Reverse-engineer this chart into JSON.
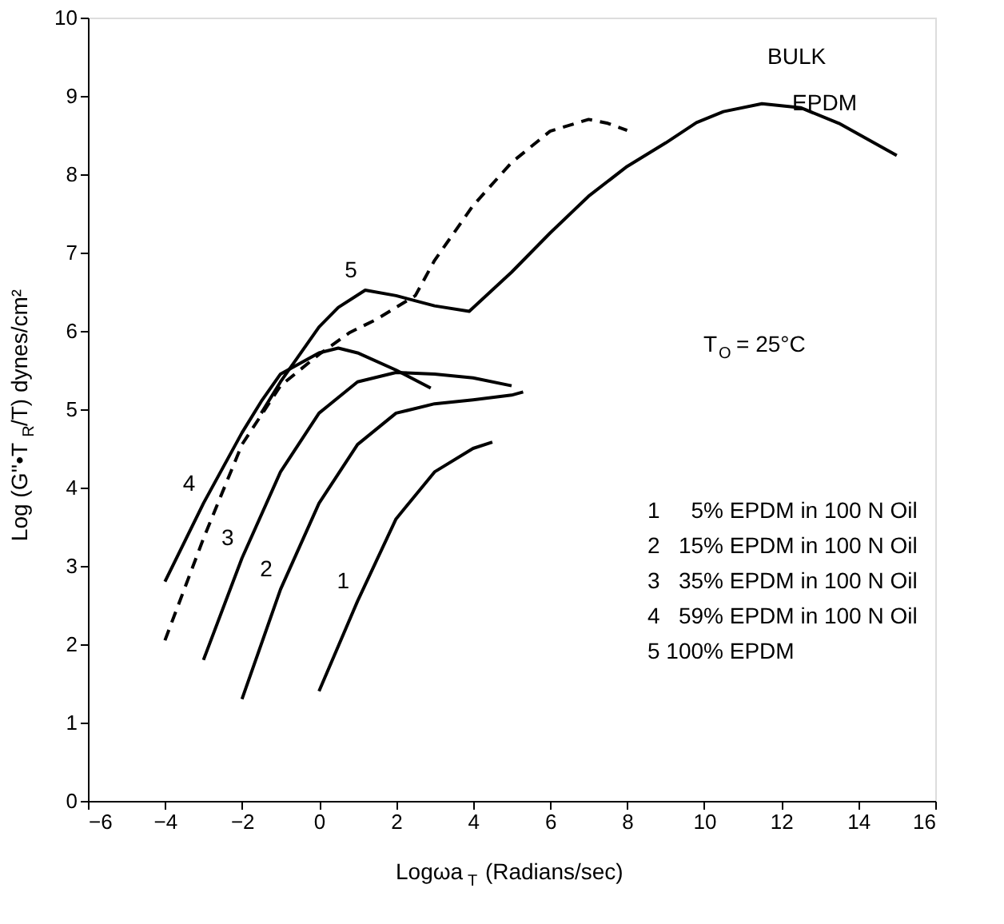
{
  "chart_data": {
    "type": "line",
    "xlabel": "Logωa$_{T}$ (Radians/sec)",
    "ylabel": "Log (G''•T$_{R}$/T) dynes/cm²",
    "xlim": [
      -6,
      16
    ],
    "ylim": [
      0,
      10
    ],
    "xticks": [
      -6,
      -4,
      -2,
      0,
      2,
      4,
      6,
      8,
      10,
      12,
      14,
      16
    ],
    "yticks": [
      0,
      1,
      2,
      3,
      4,
      5,
      6,
      7,
      8,
      9,
      10
    ],
    "grid": false,
    "line_style": "solid",
    "series": [
      {
        "color": "#000000",
        "x": [
          0,
          1,
          2,
          3,
          4,
          4.5
        ],
        "values": [
          1.4,
          2.55,
          3.6,
          4.2,
          4.5,
          4.58
        ]
      },
      {
        "color": "#000000",
        "x": [
          -2,
          -1,
          0,
          1,
          2,
          3,
          4,
          5,
          5.3
        ],
        "values": [
          1.3,
          2.7,
          3.8,
          4.55,
          4.95,
          5.07,
          5.12,
          5.18,
          5.22
        ]
      },
      {
        "color": "#000000",
        "x": [
          -3,
          -2,
          -1,
          0,
          1,
          2,
          3,
          4,
          5
        ],
        "values": [
          1.8,
          3.1,
          4.2,
          4.95,
          5.35,
          5.47,
          5.45,
          5.4,
          5.3
        ]
      },
      {
        "color": "#000000",
        "x": [
          -4,
          -3,
          -2,
          -1.5,
          -1,
          0,
          0.5,
          1,
          2,
          2.9
        ],
        "values": [
          2.8,
          3.8,
          4.7,
          5.1,
          5.45,
          5.72,
          5.78,
          5.72,
          5.5,
          5.27
        ]
      },
      {
        "color": "#000000",
        "x": [
          -1.5,
          -1,
          0,
          0.5,
          1.2,
          2,
          3,
          3.9,
          5,
          6,
          7,
          8,
          9,
          9.8,
          10.5,
          11.5,
          12.5,
          13.5,
          15
        ],
        "values": [
          4.95,
          5.35,
          6.05,
          6.3,
          6.52,
          6.45,
          6.32,
          6.25,
          6.75,
          7.25,
          7.72,
          8.1,
          8.4,
          8.66,
          8.8,
          8.9,
          8.85,
          8.65,
          8.24
        ]
      },
      {
        "color": "#000000",
        "line_style": "dashed",
        "x": [
          -4,
          -3,
          -2,
          -1,
          0,
          0.8,
          1.5,
          2.5,
          3,
          4,
          5,
          6,
          7,
          7.5,
          8
        ],
        "values": [
          2.05,
          3.35,
          4.55,
          5.3,
          5.7,
          5.98,
          6.15,
          6.45,
          6.9,
          7.6,
          8.15,
          8.55,
          8.7,
          8.65,
          8.56
        ]
      }
    ],
    "annotations": [
      {
        "text": "1",
        "x": 1,
        "y": 2.55
      },
      {
        "text": "2",
        "x": -1,
        "y": 2.7
      },
      {
        "text": "3",
        "x": -2,
        "y": 3.1
      },
      {
        "text": "4",
        "x": -3,
        "y": 3.8
      },
      {
        "text": "5",
        "x": 1.2,
        "y": 6.52
      },
      {
        "text": "EPDM",
        "x": 13.5,
        "y": 8.65
      },
      "BULK",
      "T$_{O}$ = 25°C",
      "1     5% EPDM in 100 N Oil",
      "2   15% EPDM in 100 N Oil",
      "3   35% EPDM in 100 N Oil",
      "4   59% EPDM in 100 N Oil",
      "5 100% EPDM"
    ]
  }
}
